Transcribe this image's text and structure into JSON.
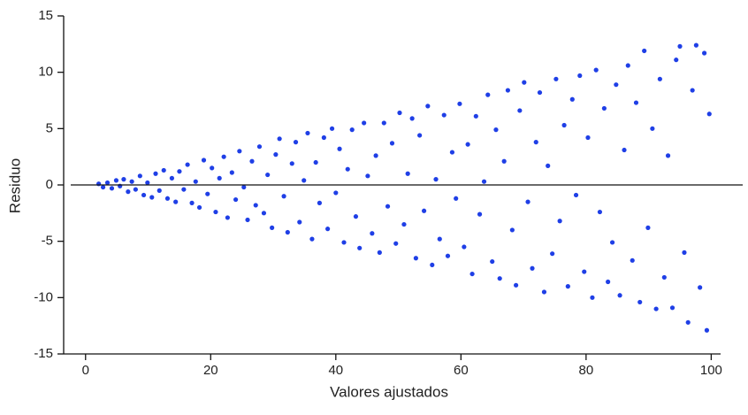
{
  "chart_data": {
    "type": "scatter",
    "x_label": "Valores ajustados",
    "y_label": "Residuo",
    "xlim": [
      -3.5,
      101.5
    ],
    "ylim": [
      -15,
      15
    ],
    "xticks": [
      0,
      20,
      40,
      60,
      80,
      100
    ],
    "yticks": [
      15,
      10,
      5,
      0,
      -5,
      -10,
      -15
    ],
    "reference_line": 0,
    "series": [
      {
        "color": "#1f3fe6",
        "x": [
          2.1,
          2.8,
          3.5,
          4.2,
          4.9,
          5.5,
          6.1,
          6.8,
          7.4,
          8.0,
          8.7,
          9.3,
          9.9,
          10.6,
          11.2,
          11.8,
          12.5,
          13.1,
          13.8,
          14.4,
          15.0,
          15.7,
          16.3,
          17.0,
          17.6,
          18.2,
          18.9,
          19.5,
          20.2,
          20.8,
          21.4,
          22.1,
          22.7,
          23.4,
          24.0,
          24.6,
          25.3,
          25.9,
          26.6,
          27.2,
          27.8,
          28.5,
          29.1,
          29.8,
          30.4,
          31.0,
          31.7,
          32.3,
          33.0,
          33.6,
          34.2,
          34.9,
          35.5,
          36.2,
          36.8,
          37.4,
          38.1,
          38.7,
          39.4,
          40.0,
          40.6,
          41.3,
          41.9,
          42.6,
          43.2,
          43.8,
          44.5,
          45.1,
          45.8,
          46.4,
          47.0,
          47.7,
          48.3,
          49.0,
          49.6,
          50.2,
          50.9,
          51.5,
          52.2,
          52.8,
          53.4,
          54.1,
          54.7,
          55.4,
          56.0,
          56.6,
          57.3,
          57.9,
          58.6,
          59.2,
          59.8,
          60.5,
          61.1,
          61.8,
          62.4,
          63.0,
          63.7,
          64.3,
          65.0,
          65.6,
          66.2,
          66.9,
          67.5,
          68.2,
          68.8,
          69.4,
          70.1,
          70.7,
          71.4,
          72.0,
          72.6,
          73.3,
          73.9,
          74.6,
          75.2,
          75.8,
          76.5,
          77.1,
          77.8,
          78.4,
          79.0,
          79.7,
          80.3,
          81.0,
          81.6,
          82.2,
          82.9,
          83.5,
          84.2,
          84.8,
          85.4,
          86.1,
          86.7,
          87.4,
          88.0,
          88.6,
          89.3,
          89.9,
          90.6,
          91.2,
          91.8,
          92.5,
          93.1,
          93.8,
          94.4,
          95.0,
          95.7,
          96.3,
          97.0,
          97.6,
          98.2,
          98.9,
          99.3,
          99.7
        ],
        "y": [
          0.1,
          -0.2,
          0.2,
          -0.3,
          0.4,
          -0.1,
          0.5,
          -0.6,
          0.3,
          -0.4,
          0.8,
          -0.9,
          0.2,
          -1.1,
          1.0,
          -0.5,
          1.3,
          -1.2,
          0.6,
          -1.5,
          1.2,
          -0.4,
          1.8,
          -1.6,
          0.3,
          -2.0,
          2.2,
          -0.8,
          1.5,
          -2.4,
          0.6,
          2.5,
          -2.9,
          1.1,
          -1.3,
          3.0,
          -0.2,
          -3.1,
          2.1,
          -1.8,
          3.4,
          -2.5,
          0.9,
          -3.8,
          2.7,
          4.1,
          -1.0,
          -4.2,
          1.9,
          3.8,
          -3.3,
          0.4,
          4.6,
          -4.8,
          2.0,
          -1.6,
          4.2,
          -3.9,
          5.0,
          -0.7,
          3.2,
          -5.1,
          1.4,
          4.9,
          -2.8,
          -5.6,
          5.5,
          0.8,
          -4.3,
          2.6,
          -6.0,
          5.5,
          -1.9,
          3.7,
          -5.2,
          6.4,
          -3.5,
          1.0,
          5.9,
          -6.5,
          4.4,
          -2.3,
          7.0,
          -7.1,
          0.5,
          -4.8,
          6.2,
          -6.3,
          2.9,
          -1.2,
          7.2,
          -5.5,
          3.6,
          -7.9,
          6.1,
          -2.6,
          0.3,
          8.0,
          -6.8,
          4.9,
          -8.3,
          2.1,
          8.4,
          -4.0,
          -8.9,
          6.6,
          9.1,
          -1.5,
          -7.4,
          3.8,
          8.2,
          -9.5,
          1.7,
          -6.1,
          9.4,
          -3.2,
          5.3,
          -9.0,
          7.6,
          -0.9,
          9.7,
          -7.7,
          4.2,
          -10.0,
          10.2,
          -2.4,
          6.8,
          -8.6,
          -5.1,
          8.9,
          -9.8,
          3.1,
          10.6,
          -6.7,
          7.3,
          -10.4,
          11.9,
          -3.8,
          5.0,
          -11.0,
          9.4,
          -8.2,
          2.6,
          -10.9,
          11.1,
          12.3,
          -6.0,
          -12.2,
          8.4,
          12.4,
          -9.1,
          11.7,
          -12.9,
          6.3
        ]
      }
    ]
  }
}
